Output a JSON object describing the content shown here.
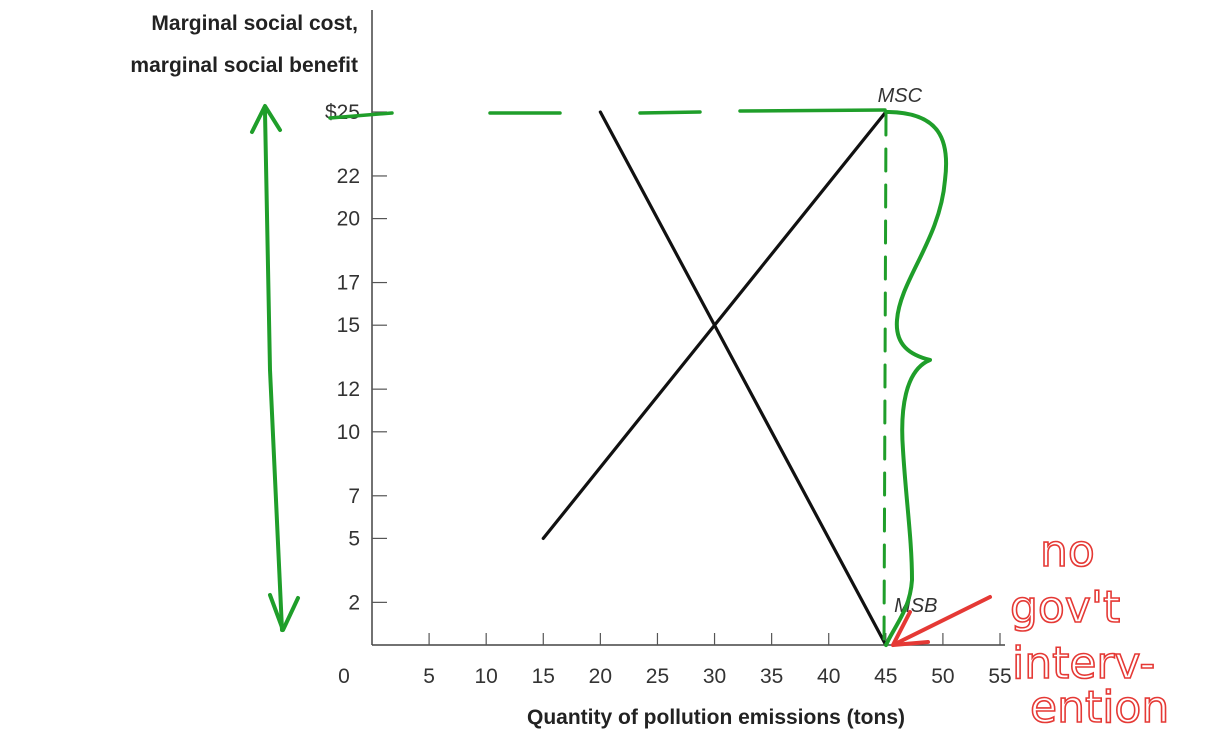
{
  "chart_data": {
    "type": "line",
    "ylabel_lines": [
      "Marginal social cost,",
      "marginal social benefit"
    ],
    "xlabel": "Quantity of pollution emissions (tons)",
    "x_ticks": [
      "0",
      "5",
      "10",
      "15",
      "20",
      "25",
      "30",
      "35",
      "40",
      "45",
      "50",
      "55"
    ],
    "y_ticks": [
      "$25",
      "22",
      "20",
      "17",
      "15",
      "12",
      "10",
      "7",
      "5",
      "2"
    ],
    "xlim": [
      0,
      55
    ],
    "ylim": [
      0,
      25
    ],
    "grid": false,
    "series": [
      {
        "name": "MSC",
        "x": [
          15,
          45
        ],
        "y": [
          5,
          25
        ]
      },
      {
        "name": "MSB",
        "x": [
          20,
          45
        ],
        "y": [
          25,
          0
        ]
      }
    ],
    "annotations": {
      "handwritten_note": [
        "no",
        "gov't",
        "interv-",
        "ention"
      ],
      "note_color": "#e53935",
      "markup_color": "#1f9e2a"
    }
  }
}
